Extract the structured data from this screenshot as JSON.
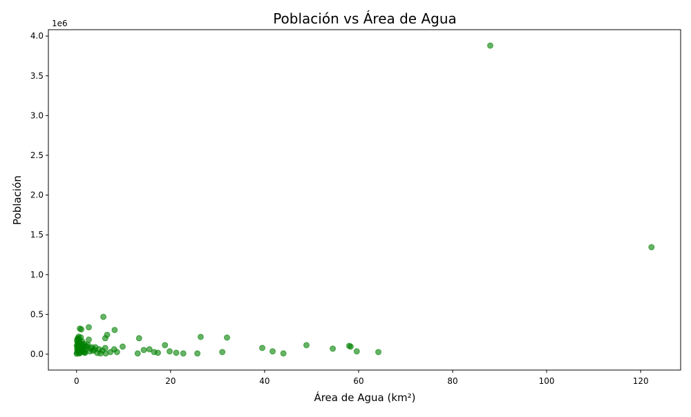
{
  "chart_data": {
    "type": "scatter",
    "title": "Población vs Área de Agua",
    "x_label": "Área de Agua (km²)",
    "y_label": "Población",
    "y_offset_label": "1e6",
    "color": "#008000",
    "grid": false,
    "xlim": [
      -6,
      128.5
    ],
    "ylim": [
      -200000,
      4080000
    ],
    "xticks": [
      0,
      20,
      40,
      60,
      80,
      100,
      120
    ],
    "yticks": [
      {
        "value": 0,
        "label": "0.0"
      },
      {
        "value": 500000,
        "label": "0.5"
      },
      {
        "value": 1000000,
        "label": "1.0"
      },
      {
        "value": 1500000,
        "label": "1.5"
      },
      {
        "value": 2000000,
        "label": "2.0"
      },
      {
        "value": 2500000,
        "label": "2.5"
      },
      {
        "value": 3000000,
        "label": "3.0"
      },
      {
        "value": 3500000,
        "label": "3.5"
      },
      {
        "value": 4000000,
        "label": "4.0"
      }
    ],
    "x": [
      88,
      122.3,
      5.7,
      8.1,
      0.7,
      1.0,
      2.6,
      6.5,
      6.1,
      13.3,
      26.4,
      32,
      9.8,
      18.8,
      48.9,
      58,
      58.3,
      39.5,
      54.5,
      41.7,
      59.6,
      64.2,
      44,
      31,
      25.7,
      22.7,
      21.2,
      19.8,
      17.3,
      16.5,
      15.5,
      14.3,
      13.0,
      8.6,
      8.0,
      7.2,
      6.1,
      6.2,
      5.1,
      4.8,
      4.0,
      3.5,
      3.0,
      2.6,
      2.2,
      1.8,
      0.05,
      0.1,
      0.15,
      0.2,
      0.25,
      0.3,
      0.35,
      0.4,
      0.5,
      0.55,
      0.6,
      0.65,
      0.8,
      0.9,
      1.1,
      1.2,
      1.3,
      1.4,
      1.5,
      1.6,
      1.7,
      1.9,
      2.0,
      0.1,
      0.2,
      0.3,
      0.45,
      0.6,
      0.75,
      1.0,
      1.25,
      1.5,
      0.05,
      0.15,
      0.35,
      0.5,
      0.85,
      1.15,
      2.4,
      2.8,
      3.3,
      3.8,
      4.4,
      5.5
    ],
    "values": [
      3880000,
      1345000,
      469000,
      304000,
      321000,
      312000,
      338000,
      243000,
      200000,
      200000,
      217000,
      208000,
      95000,
      113000,
      113000,
      104000,
      95000,
      78000,
      69000,
      35000,
      35000,
      26000,
      9000,
      26000,
      9000,
      9000,
      17000,
      35000,
      17000,
      26000,
      61000,
      52000,
      9000,
      26000,
      61000,
      26000,
      78000,
      9000,
      9000,
      61000,
      87000,
      43000,
      69000,
      182000,
      95000,
      17000,
      5000,
      20000,
      60000,
      100000,
      150000,
      200000,
      30000,
      120000,
      80000,
      180000,
      10000,
      140000,
      50000,
      210000,
      90000,
      160000,
      40000,
      110000,
      70000,
      130000,
      20000,
      60000,
      100000,
      170000,
      190000,
      40000,
      220000,
      90000,
      15000,
      130000,
      50000,
      30000,
      110000,
      75000,
      150000,
      25000,
      45000,
      65000,
      120000,
      35000,
      85000,
      55000,
      15000,
      45000
    ]
  }
}
